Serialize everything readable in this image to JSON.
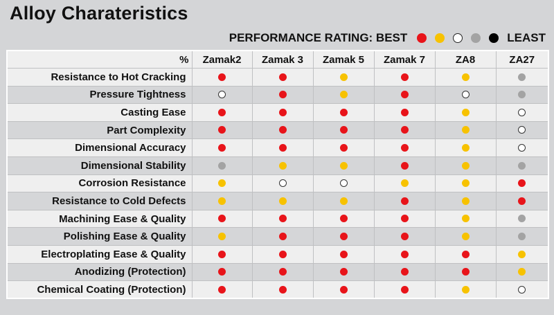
{
  "title": "Alloy Charateristics",
  "legend": {
    "label": "PERFORMANCE RATING: BEST",
    "end_label": "LEAST",
    "scale": [
      "red",
      "yellow",
      "white",
      "gray",
      "black"
    ]
  },
  "colors": {
    "red": "#e8141a",
    "yellow": "#f7c200",
    "white": "#ffffff",
    "gray": "#a3a3a3",
    "black": "#000000"
  },
  "chart_data": {
    "type": "table",
    "title": "Alloy Charateristics",
    "corner_label": "%",
    "columns": [
      "Zamak2",
      "Zamak 3",
      "Zamak 5",
      "Zamak 7",
      "ZA8",
      "ZA27"
    ],
    "rows": [
      {
        "label": "Resistance to Hot Cracking",
        "ratings": [
          "red",
          "red",
          "yellow",
          "red",
          "yellow",
          "gray"
        ]
      },
      {
        "label": "Pressure Tightness",
        "ratings": [
          "white",
          "red",
          "yellow",
          "red",
          "white",
          "gray"
        ]
      },
      {
        "label": "Casting Ease",
        "ratings": [
          "red",
          "red",
          "red",
          "red",
          "yellow",
          "white"
        ]
      },
      {
        "label": "Part Complexity",
        "ratings": [
          "red",
          "red",
          "red",
          "red",
          "yellow",
          "white"
        ]
      },
      {
        "label": "Dimensional Accuracy",
        "ratings": [
          "red",
          "red",
          "red",
          "red",
          "yellow",
          "white"
        ]
      },
      {
        "label": "Dimensional Stability",
        "ratings": [
          "gray",
          "yellow",
          "yellow",
          "red",
          "yellow",
          "gray"
        ]
      },
      {
        "label": "Corrosion Resistance",
        "ratings": [
          "yellow",
          "white",
          "white",
          "yellow",
          "yellow",
          "red"
        ]
      },
      {
        "label": "Resistance to Cold Defects",
        "ratings": [
          "yellow",
          "yellow",
          "yellow",
          "red",
          "yellow",
          "red"
        ]
      },
      {
        "label": "Machining Ease & Quality",
        "ratings": [
          "red",
          "red",
          "red",
          "red",
          "yellow",
          "gray"
        ]
      },
      {
        "label": "Polishing Ease & Quality",
        "ratings": [
          "yellow",
          "red",
          "red",
          "red",
          "yellow",
          "gray"
        ]
      },
      {
        "label": "Electroplating Ease & Quality",
        "ratings": [
          "red",
          "red",
          "red",
          "red",
          "red",
          "yellow"
        ]
      },
      {
        "label": "Anodizing (Protection)",
        "ratings": [
          "red",
          "red",
          "red",
          "red",
          "red",
          "yellow"
        ]
      },
      {
        "label": "Chemical Coating (Protection)",
        "ratings": [
          "red",
          "red",
          "red",
          "red",
          "yellow",
          "white"
        ]
      }
    ]
  }
}
